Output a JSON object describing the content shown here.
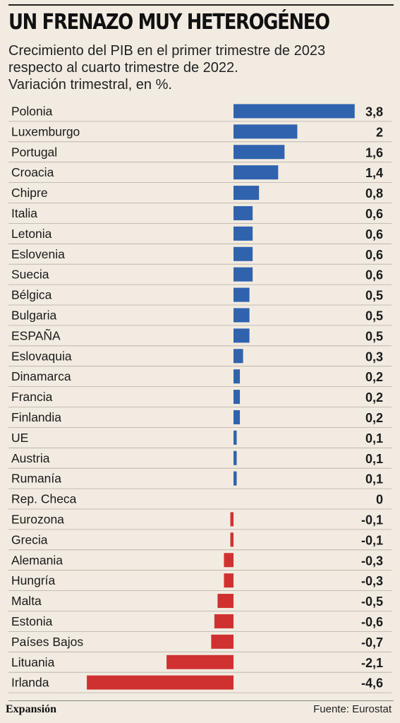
{
  "header": {
    "title": "UN FRENAZO MUY HETEROGÉNEO",
    "subtitle_lines": [
      "Crecimiento del PIB en el primer trimestre de 2023",
      "respecto al cuarto trimestre de 2022.",
      "Variación trimestral, en %."
    ]
  },
  "footer": {
    "brand": "Expansión",
    "source": "Fuente: Eurostat"
  },
  "colors": {
    "positive": "#2f63ae",
    "negative": "#cf3131",
    "background": "#f2ebe1",
    "gridline": "#b5aea4"
  },
  "chart_data": {
    "type": "bar",
    "orientation": "horizontal",
    "title": "UN FRENAZO MUY HETEROGÉNEO",
    "categories": [
      "Polonia",
      "Luxemburgo",
      "Portugal",
      "Croacia",
      "Chipre",
      "Italia",
      "Letonia",
      "Eslovenia",
      "Suecia",
      "Bélgica",
      "Bulgaria",
      "ESPAÑA",
      "Eslovaquia",
      "Dinamarca",
      "Francia",
      "Finlandia",
      "UE",
      "Austria",
      "Rumanía",
      "Rep. Checa",
      "Eurozona",
      "Grecia",
      "Alemania",
      "Hungría",
      "Malta",
      "Estonia",
      "Países Bajos",
      "Lituania",
      "Irlanda"
    ],
    "values": [
      3.8,
      2,
      1.6,
      1.4,
      0.8,
      0.6,
      0.6,
      0.6,
      0.6,
      0.5,
      0.5,
      0.5,
      0.3,
      0.2,
      0.2,
      0.2,
      0.1,
      0.1,
      0.1,
      0,
      -0.1,
      -0.1,
      -0.3,
      -0.3,
      -0.5,
      -0.6,
      -0.7,
      -2.1,
      -4.6
    ],
    "value_labels": [
      "3,8",
      "2",
      "1,6",
      "1,4",
      "0,8",
      "0,6",
      "0,6",
      "0,6",
      "0,6",
      "0,5",
      "0,5",
      "0,5",
      "0,3",
      "0,2",
      "0,2",
      "0,2",
      "0,1",
      "0,1",
      "0,1",
      "0",
      "-0,1",
      "-0,1",
      "-0,3",
      "-0,3",
      "-0,5",
      "-0,6",
      "-0,7",
      "-2,1",
      "-4,6"
    ],
    "xlabel": "",
    "ylabel": "",
    "grid": "horizontal row separators",
    "legend": "none"
  }
}
